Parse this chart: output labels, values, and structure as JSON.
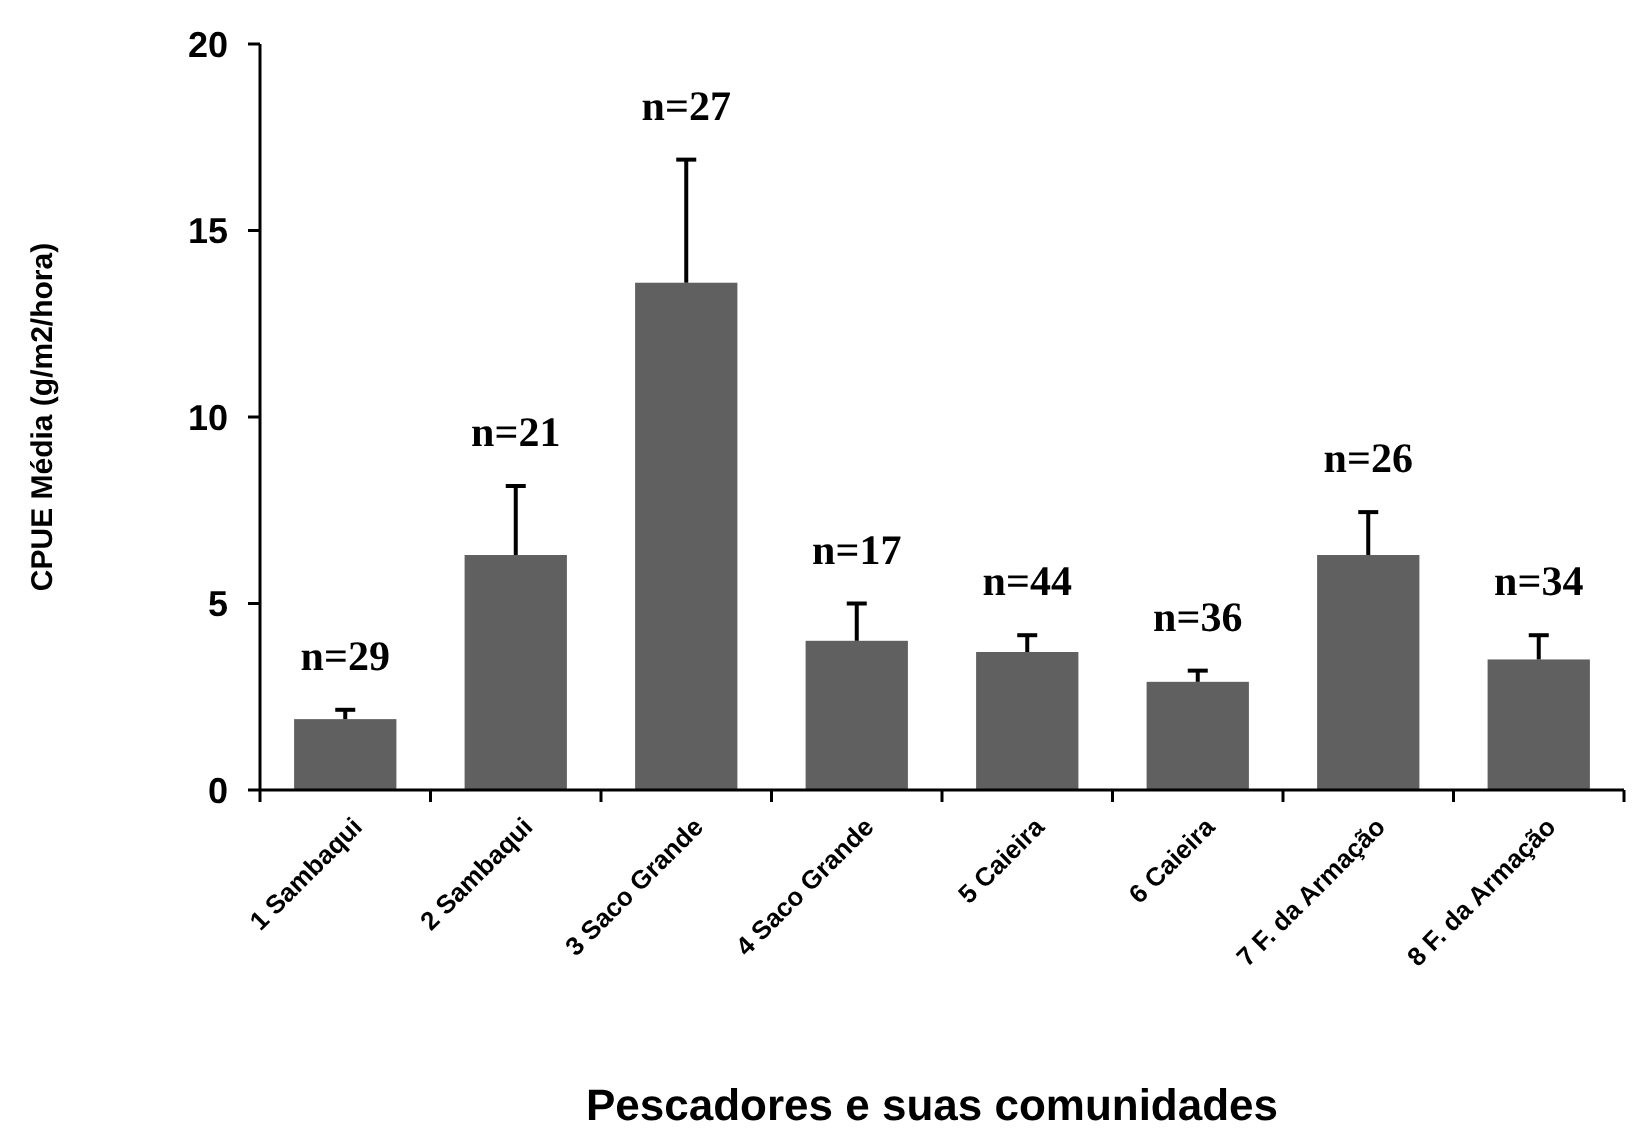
{
  "chart_data": {
    "type": "bar",
    "xlabel": "Pescadores e suas comunidades",
    "ylabel": "CPUE Média (g/m2/hora)",
    "categories": [
      "1  Sambaqui",
      "2 Sambaqui",
      "3 Saco Grande",
      "4 Saco Grande",
      "5 Caieira",
      "6 Caieira",
      "7 F. da Armação",
      "8 F. da Armação"
    ],
    "values": [
      1.9,
      6.3,
      13.6,
      4.0,
      3.7,
      2.9,
      6.3,
      3.5
    ],
    "errors": [
      [
        1.9,
        2.15
      ],
      [
        6.3,
        8.15
      ],
      [
        13.6,
        16.9
      ],
      [
        4.0,
        5.0
      ],
      [
        3.7,
        4.15
      ],
      [
        2.9,
        3.2
      ],
      [
        6.3,
        7.45
      ],
      [
        3.5,
        4.15
      ]
    ],
    "color": "#606060",
    "ylim": [
      0,
      20
    ],
    "yticks": [
      0,
      5,
      10,
      15,
      20
    ],
    "grid": false,
    "annotations": [
      {
        "text": "n=29",
        "x": "1  Sambaqui",
        "y": 2.15
      },
      {
        "text": "n=21",
        "x": "2 Sambaqui",
        "y": 8.15
      },
      {
        "text": "n=27",
        "x": "3 Saco Grande",
        "y": 16.9
      },
      {
        "text": "n=17",
        "x": "4 Saco Grande",
        "y": 5.0
      },
      {
        "text": "n=44",
        "x": "5 Caieira",
        "y": 4.15
      },
      {
        "text": "n=36",
        "x": "6 Caieira",
        "y": 3.2
      },
      {
        "text": "n=26",
        "x": "7 F. da Armação",
        "y": 7.45
      },
      {
        "text": "n=34",
        "x": "8 F. da Armação",
        "y": 4.15
      }
    ]
  }
}
